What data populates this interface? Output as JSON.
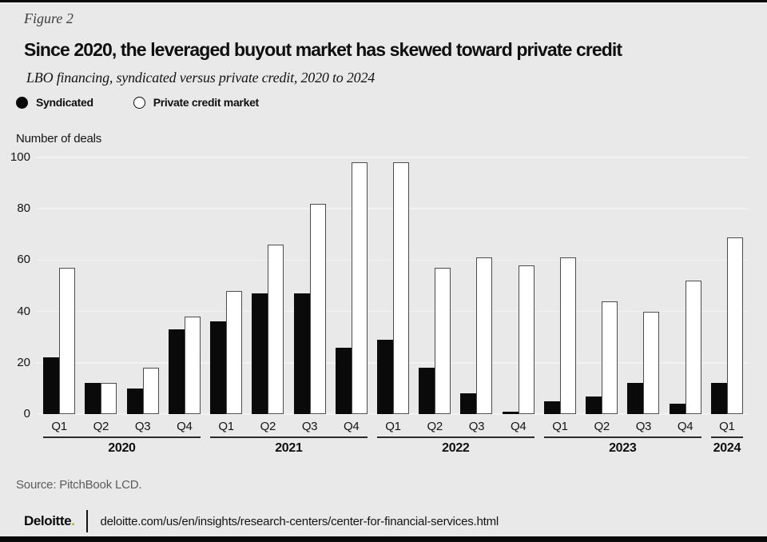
{
  "page": {
    "figure_label": "Figure 2",
    "title": "Since 2020, the leveraged buyout market has skewed toward private credit",
    "subtitle": "LBO financing, syndicated versus private credit, 2020 to 2024",
    "axis_label": "Number of deals",
    "source": "Source: PitchBook LCD.",
    "footer": {
      "brand": "Deloitte",
      "brand_dot": ".",
      "url": "deloitte.com/us/en/insights/research-centers/center-for-financial-services.html"
    },
    "colors": {
      "background": "#e9e9e9",
      "bar_syndicated": "#0a0a0a",
      "bar_private_fill": "#ffffff",
      "bar_private_outline": "#4d4d4d",
      "gridline": "#f2f2f2",
      "accent_green": "#86bc25",
      "text_gray": "#5c5c5c"
    }
  },
  "legend": [
    {
      "label": "Syndicated",
      "swatch": "filled"
    },
    {
      "label": "Private credit market",
      "swatch": "open"
    }
  ],
  "chart_data": {
    "type": "bar",
    "title": "LBO financing, syndicated versus private credit, 2020 to 2024",
    "xlabel": "",
    "ylabel": "Number of deals",
    "ylim": [
      0,
      100
    ],
    "yticks": [
      0,
      20,
      40,
      60,
      80,
      100
    ],
    "grid": true,
    "legend_position": "top",
    "groups": [
      {
        "year": "2020",
        "quarters": [
          "Q1",
          "Q2",
          "Q3",
          "Q4"
        ]
      },
      {
        "year": "2021",
        "quarters": [
          "Q1",
          "Q2",
          "Q3",
          "Q4"
        ]
      },
      {
        "year": "2022",
        "quarters": [
          "Q1",
          "Q2",
          "Q3",
          "Q4"
        ]
      },
      {
        "year": "2023",
        "quarters": [
          "Q1",
          "Q2",
          "Q3",
          "Q4"
        ]
      },
      {
        "year": "2024",
        "quarters": [
          "Q1"
        ]
      }
    ],
    "categories": [
      "2020 Q1",
      "2020 Q2",
      "2020 Q3",
      "2020 Q4",
      "2021 Q1",
      "2021 Q2",
      "2021 Q3",
      "2021 Q4",
      "2022 Q1",
      "2022 Q2",
      "2022 Q3",
      "2022 Q4",
      "2023 Q1",
      "2023 Q2",
      "2023 Q3",
      "2023 Q4",
      "2024 Q1"
    ],
    "series": [
      {
        "name": "Syndicated",
        "values": [
          22,
          12,
          10,
          33,
          36,
          47,
          47,
          26,
          29,
          18,
          8,
          1,
          5,
          7,
          12,
          4,
          12
        ]
      },
      {
        "name": "Private credit market",
        "values": [
          57,
          12,
          18,
          38,
          48,
          66,
          82,
          98,
          98,
          57,
          61,
          58,
          61,
          44,
          40,
          52,
          69
        ]
      }
    ]
  }
}
